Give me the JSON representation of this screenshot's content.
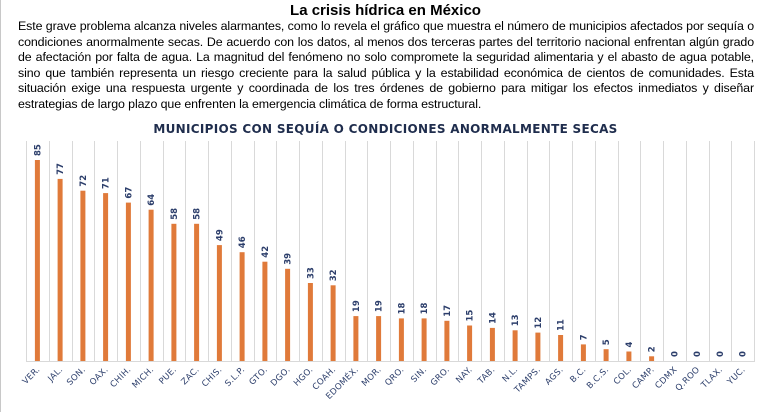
{
  "article": {
    "heading": "La crisis hídrica en México",
    "body": "Este grave problema alcanza niveles alarmantes, como lo revela el gráfico que muestra el número de municipios afectados por sequía o condiciones anormalmente secas. De acuerdo con los datos, al menos dos terceras partes del territorio nacional enfrentan algún grado de afectación por falta de agua. La magnitud del fenómeno no solo compromete la seguridad alimentaria y el abasto de agua potable, sino que también representa un riesgo creciente para la salud pública y la estabilidad económica de cientos de comunidades. Esta situación exige una respuesta urgente y coordinada de los tres órdenes de gobierno para mitigar los efectos inmediatos y diseñar estrategias de largo plazo que enfrenten la emergencia climática de forma estructural."
  },
  "chart_data": {
    "type": "bar",
    "title": "MUNICIPIOS CON SEQUÍA O CONDICIONES ANORMALMENTE SECAS",
    "xlabel": "",
    "ylabel": "",
    "categories": [
      "VER.",
      "JAL.",
      "SON.",
      "OAX.",
      "CHIH.",
      "MICH.",
      "PUE.",
      "ZAC.",
      "CHIS.",
      "S.L.P.",
      "GTO.",
      "DGO.",
      "HGO.",
      "COAH.",
      "EDOMÉX.",
      "MOR.",
      "QRO.",
      "SIN.",
      "GRO.",
      "NAY.",
      "TAB.",
      "N.L.",
      "TAMPS.",
      "AGS.",
      "B.C.",
      "B.C.S.",
      "COL.",
      "CAMP.",
      "CDMX",
      "Q.ROO",
      "TLAX.",
      "YUC."
    ],
    "values": [
      85,
      77,
      72,
      71,
      67,
      64,
      58,
      58,
      49,
      46,
      42,
      39,
      33,
      32,
      19,
      19,
      18,
      18,
      17,
      15,
      14,
      13,
      12,
      11,
      7,
      5,
      4,
      2,
      0,
      0,
      0,
      0
    ],
    "ylim": [
      0,
      85
    ],
    "grid": "vertical",
    "legend": "none",
    "data_labels": true,
    "colors": {
      "bar": "#e07a3a",
      "labels": "#2c3e6b",
      "title": "#1f2d4d",
      "grid": "#d9d9d9"
    }
  }
}
